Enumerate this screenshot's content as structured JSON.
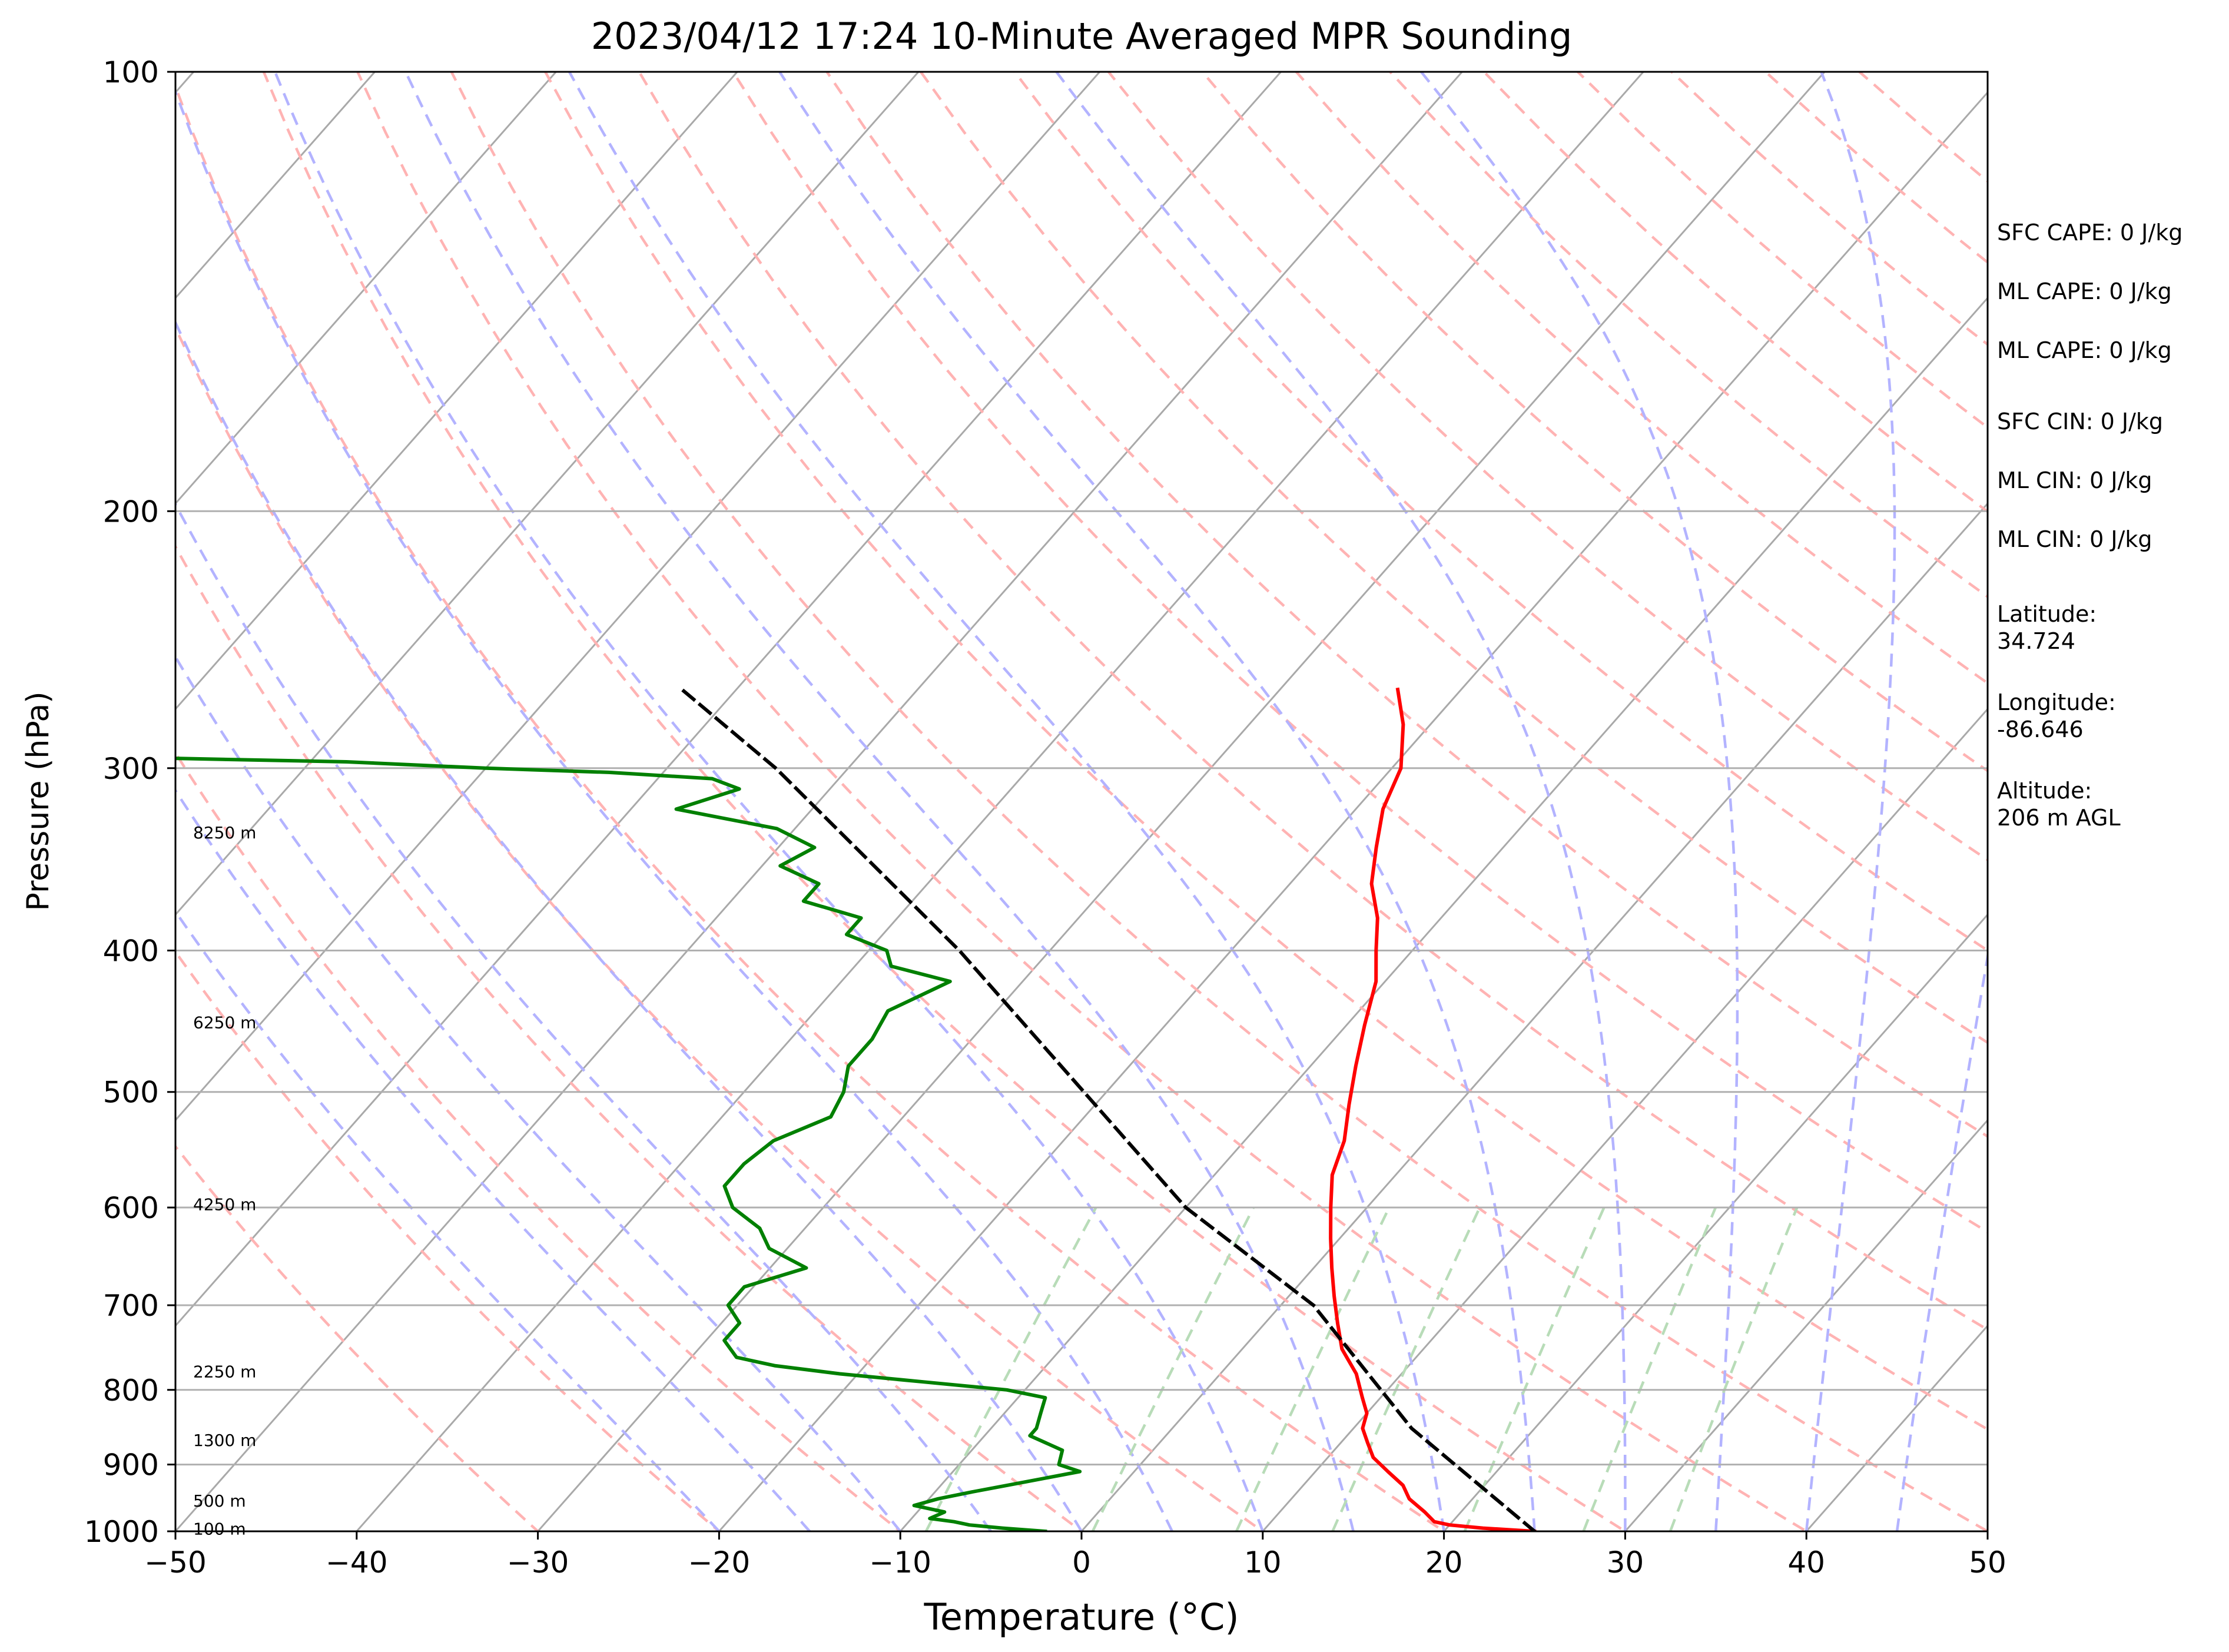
{
  "chart_data": {
    "type": "line",
    "title": "2023/04/12 17:24 10-Minute Averaged MPR Sounding",
    "xlabel": "Temperature (°C)",
    "ylabel": "Pressure (hPa)",
    "xlim": [
      -50,
      50
    ],
    "ylim": [
      1000,
      100
    ],
    "y_scale": "log",
    "x_ticks": [
      "−50",
      "−40",
      "−30",
      "−20",
      "−10",
      "0",
      "10",
      "20",
      "30",
      "40",
      "50"
    ],
    "y_ticks": [
      "100",
      "200",
      "300",
      "400",
      "500",
      "600",
      "700",
      "800",
      "900",
      "1000"
    ],
    "skew": true,
    "grid": "horizontal isobars",
    "height_labels": [
      {
        "text": "100 m",
        "p": 996
      },
      {
        "text": "500 m",
        "p": 953
      },
      {
        "text": "1300 m",
        "p": 866
      },
      {
        "text": "2250 m",
        "p": 777
      },
      {
        "text": "4250 m",
        "p": 597
      },
      {
        "text": "6250 m",
        "p": 448
      },
      {
        "text": "8250 m",
        "p": 332
      }
    ],
    "series": [
      {
        "color": "#ff0000",
        "p": [
          1000,
          995,
          990,
          985,
          970,
          950,
          930,
          910,
          890,
          870,
          850,
          830,
          810,
          780,
          750,
          720,
          690,
          660,
          630,
          600,
          570,
          540,
          510,
          480,
          450,
          420,
          400,
          380,
          360,
          340,
          320,
          300,
          280,
          265
        ],
        "t": [
          25.0,
          22.0,
          20.0,
          19.0,
          18.0,
          16.5,
          15.5,
          14.0,
          12.5,
          11.5,
          10.5,
          10.0,
          9.0,
          7.5,
          5.5,
          4.0,
          2.5,
          1.0,
          -0.5,
          -2.0,
          -3.5,
          -4.5,
          -6.0,
          -7.5,
          -9.0,
          -10.5,
          -12.0,
          -13.5,
          -15.5,
          -17.0,
          -18.5,
          -19.5,
          -21.5,
          -23.5
        ]
      },
      {
        "color": "#008000",
        "p": [
          1000,
          995,
          990,
          985,
          980,
          970,
          960,
          950,
          940,
          925,
          910,
          900,
          880,
          860,
          850,
          830,
          810,
          800,
          790,
          780,
          770,
          760,
          740,
          720,
          700,
          680,
          660,
          640,
          620,
          600,
          580,
          560,
          540,
          520,
          500,
          480,
          460,
          440,
          420,
          410,
          400,
          390,
          380,
          370,
          360,
          350,
          340,
          330,
          320,
          310,
          305,
          302,
          300,
          297,
          295,
          293
        ],
        "t": [
          -2.0,
          -4.5,
          -6.5,
          -7.5,
          -9.0,
          -8.5,
          -10.5,
          -9.5,
          -8.0,
          -5.5,
          -3.0,
          -4.5,
          -5.0,
          -7.5,
          -7.5,
          -8.0,
          -8.5,
          -11.0,
          -16.0,
          -21.0,
          -25.0,
          -27.5,
          -29.0,
          -29.0,
          -30.5,
          -30.5,
          -28.0,
          -31.0,
          -32.5,
          -35.0,
          -36.5,
          -36.5,
          -36.0,
          -34.0,
          -34.5,
          -35.5,
          -35.5,
          -36.0,
          -34.0,
          -38.0,
          -39.0,
          -42.0,
          -42.0,
          -46.0,
          -46.0,
          -49.0,
          -48.0,
          -51.0,
          -57.5,
          -55.0,
          -57.0,
          -63.0,
          -70.0,
          -78.0,
          -90.0,
          -100.0
        ]
      },
      {
        "style": "dashed",
        "color": "#000000",
        "p": [
          1000,
          850,
          700,
          600,
          400,
          300,
          265
        ],
        "t": [
          25.0,
          13.2,
          1.8,
          -10.0,
          -35.0,
          -54.0,
          -63.0
        ]
      }
    ]
  },
  "info": {
    "sfc_cape": "SFC CAPE: 0 J/kg",
    "ml_cape_1": "ML CAPE: 0 J/kg",
    "ml_cape_2": "ML CAPE: 0 J/kg",
    "sfc_cin": "SFC CIN: 0 J/kg",
    "ml_cin_1": "ML CIN: 0 J/kg",
    "ml_cin_2": "ML CIN: 0 J/kg",
    "latitude": "Latitude:\n34.724",
    "longitude": "Longitude:\n-86.646",
    "altitude": "Altitude:\n206 m AGL"
  }
}
